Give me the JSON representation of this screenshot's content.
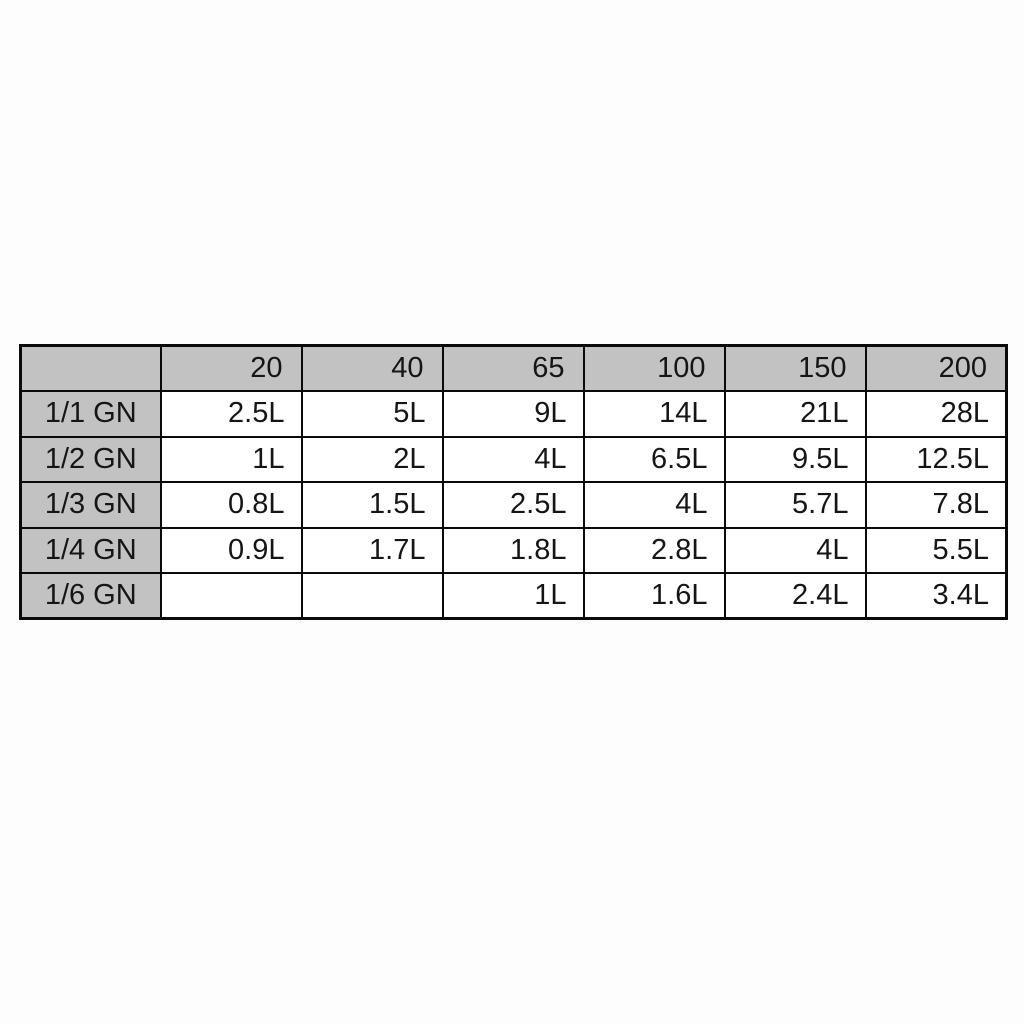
{
  "page": {
    "background": "#fdfdfd"
  },
  "chart_data": {
    "type": "table",
    "columns": [
      "",
      "20",
      "40",
      "65",
      "100",
      "150",
      "200"
    ],
    "rows": [
      {
        "label": "1/1 GN",
        "values": [
          "2.5L",
          "5L",
          "9L",
          "14L",
          "21L",
          "28L"
        ]
      },
      {
        "label": "1/2 GN",
        "values": [
          "1L",
          "2L",
          "4L",
          "6.5L",
          "9.5L",
          "12.5L"
        ]
      },
      {
        "label": "1/3 GN",
        "values": [
          "0.8L",
          "1.5L",
          "2.5L",
          "4L",
          "5.7L",
          "7.8L"
        ]
      },
      {
        "label": "1/4 GN",
        "values": [
          "0.9L",
          "1.7L",
          "1.8L",
          "2.8L",
          "4L",
          "5.5L"
        ]
      },
      {
        "label": "1/6 GN",
        "values": [
          "",
          "",
          "1L",
          "1.6L",
          "2.4L",
          "3.4L"
        ]
      }
    ],
    "colors": {
      "header_bg": "#c2c2c2",
      "cell_bg": "#ffffff",
      "border": "#0a0a0a",
      "text": "#151515",
      "page_bg": "#fdfdfd"
    },
    "layout": {
      "grid": "on",
      "value_alignment": "right",
      "label_alignment": "center"
    }
  }
}
